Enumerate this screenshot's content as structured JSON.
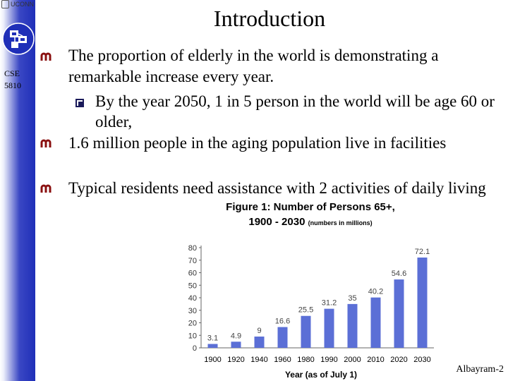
{
  "header": {
    "title": "Introduction",
    "university": "UCONN"
  },
  "sidebar": {
    "course_line1": "CSE",
    "course_line2": "5810"
  },
  "bullets": {
    "b1": "The proportion of elderly in the world is demonstrating a remarkable increase every year.",
    "sub1": "By the year 2050, 1 in 5 person in the world will be age 60 or older,",
    "b2": "1.6 million people in the aging population live in facilities",
    "b3": "Typical residents need assistance with 2 activities of daily living"
  },
  "figure": {
    "title_line1": "Figure 1: Number of Persons 65+,",
    "title_line2": "1900 - 2030",
    "title_note": "(numbers in millions)"
  },
  "chart_data": {
    "type": "bar",
    "categories": [
      "1900",
      "1920",
      "1940",
      "1960",
      "1980",
      "1990",
      "2000",
      "2010",
      "2020",
      "2030"
    ],
    "values": [
      3.1,
      4.9,
      9,
      16.6,
      25.5,
      31.2,
      35,
      40.2,
      54.6,
      72.1
    ],
    "value_labels": [
      "3.1",
      "4.9",
      "9",
      "16.6",
      "25.5",
      "31.2",
      "35",
      "40.2",
      "54.6",
      "72.1"
    ],
    "xlabel": "Year (as of July 1)",
    "ylabel": "",
    "ylim": [
      0,
      80
    ],
    "yticks": [
      "0",
      "10",
      "20",
      "30",
      "40",
      "50",
      "60",
      "70",
      "80"
    ],
    "grid": false,
    "colors": {
      "bar": "#5b6fd6",
      "label": "#444444"
    }
  },
  "footer": {
    "page_label": "Albayram-2"
  },
  "colors": {
    "band": "#1f2fb8",
    "bullet_icon": "#8a1010"
  }
}
